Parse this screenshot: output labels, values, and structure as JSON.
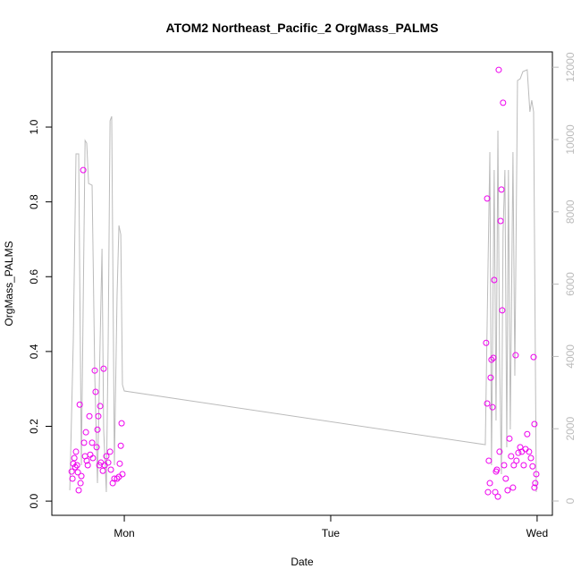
{
  "chart_data": {
    "type": "scatter",
    "title": "ATOM2 Northeast_Pacific_2 OrgMass_PALMS",
    "x_label": "Date",
    "y_label": "OrgMass_PALMS",
    "xlim": [
      -0.351,
      2.074
    ],
    "xticks": [
      {
        "value": 0,
        "label": "Mon"
      },
      {
        "value": 1,
        "label": "Tue"
      },
      {
        "value": 2,
        "label": "Wed"
      }
    ],
    "ylim": [
      -0.038,
      1.201
    ],
    "yticks": [
      {
        "value": 0,
        "label": "0.0"
      },
      {
        "value": 0.2,
        "label": "0.2"
      },
      {
        "value": 0.4,
        "label": "0.4"
      },
      {
        "value": 0.6,
        "label": "0.6"
      },
      {
        "value": 0.8,
        "label": "0.8"
      },
      {
        "value": 1,
        "label": "1.0"
      }
    ],
    "y2lim": [
      -396,
      12425
    ],
    "y2ticks": [
      0,
      2000,
      4000,
      6000,
      8000,
      10000,
      12000
    ],
    "series": [
      {
        "color": "#bbbbbb",
        "axis": "y2",
        "kind": "line",
        "x": [
          -0.264,
          -0.247,
          -0.234,
          -0.221,
          -0.208,
          -0.19,
          -0.182,
          -0.173,
          -0.156,
          -0.143,
          -0.13,
          -0.117,
          -0.108,
          -0.1,
          -0.087,
          -0.078,
          -0.069,
          -0.061,
          -0.048,
          -0.035,
          -0.026,
          -0.017,
          -0.009,
          0,
          1.749,
          1.762,
          1.771,
          1.779,
          1.792,
          1.801,
          1.81,
          1.818,
          1.827,
          1.835,
          1.844,
          1.853,
          1.861,
          1.87,
          1.883,
          1.892,
          1.905,
          1.918,
          1.931,
          1.952,
          1.965,
          1.974,
          1.983,
          1.996
        ],
        "values": [
          297,
          4455,
          9603,
          9603,
          990,
          9974,
          9900,
          8786,
          8737,
          3465,
          495,
          4455,
          6980,
          1980,
          248,
          4455,
          10519,
          10643,
          990,
          5693,
          7623,
          7376,
          3218,
          3044,
          1559,
          6435,
          9653,
          990,
          9158,
          2228,
          10247,
          3960,
          743,
          7425,
          9158,
          1485,
          9158,
          1980,
          9653,
          3465,
          11633,
          11682,
          11880,
          11930,
          10766,
          11088,
          10766,
          248
        ]
      },
      {
        "color": "#ee00ee",
        "kind": "points",
        "x": [
          -0.255,
          -0.251,
          -0.247,
          -0.242,
          -0.238,
          -0.234,
          -0.229,
          -0.225,
          -0.221,
          -0.216,
          -0.212,
          -0.208,
          -0.199,
          -0.195,
          -0.19,
          -0.186,
          -0.182,
          -0.177,
          -0.169,
          -0.165,
          -0.156,
          -0.152,
          -0.143,
          -0.139,
          -0.134,
          -0.13,
          -0.126,
          -0.121,
          -0.117,
          -0.113,
          -0.104,
          -0.1,
          -0.095,
          -0.087,
          -0.078,
          -0.069,
          -0.065,
          -0.056,
          -0.048,
          -0.035,
          -0.026,
          -0.022,
          -0.017,
          -0.013,
          -0.009,
          1.753,
          1.758,
          1.758,
          1.762,
          1.766,
          1.771,
          1.775,
          1.779,
          1.784,
          1.788,
          1.792,
          1.797,
          1.801,
          1.805,
          1.81,
          1.814,
          1.818,
          1.823,
          1.827,
          1.831,
          1.835,
          1.84,
          1.848,
          1.857,
          1.866,
          1.874,
          1.883,
          1.887,
          1.896,
          1.9,
          1.909,
          1.918,
          1.926,
          1.935,
          1.944,
          1.952,
          1.961,
          1.97,
          1.978,
          1.983,
          1.987,
          1.987,
          1.991,
          1.996
        ],
        "values": [
          0.079,
          0.06,
          0.1,
          0.115,
          0.091,
          0.132,
          0.096,
          0.077,
          0.029,
          0.258,
          0.048,
          0.067,
          0.885,
          0.156,
          0.12,
          0.184,
          0.108,
          0.096,
          0.227,
          0.124,
          0.156,
          0.115,
          0.349,
          0.292,
          0.144,
          0.191,
          0.227,
          0.096,
          0.254,
          0.103,
          0.081,
          0.354,
          0.096,
          0.12,
          0.103,
          0.132,
          0.084,
          0.048,
          0.06,
          0.06,
          0.065,
          0.1,
          0.148,
          0.208,
          0.072,
          0.423,
          0.809,
          0.261,
          0.024,
          0.108,
          0.048,
          0.33,
          0.378,
          0.251,
          0.383,
          0.591,
          0.024,
          0.079,
          0.084,
          0.012,
          1.153,
          0.132,
          0.749,
          0.833,
          0.51,
          1.065,
          0.096,
          0.06,
          0.029,
          0.167,
          0.12,
          0.036,
          0.096,
          0.39,
          0.108,
          0.129,
          0.144,
          0.132,
          0.096,
          0.139,
          0.179,
          0.132,
          0.115,
          0.093,
          0.385,
          0.036,
          0.206,
          0.048,
          0.072
        ]
      }
    ]
  }
}
